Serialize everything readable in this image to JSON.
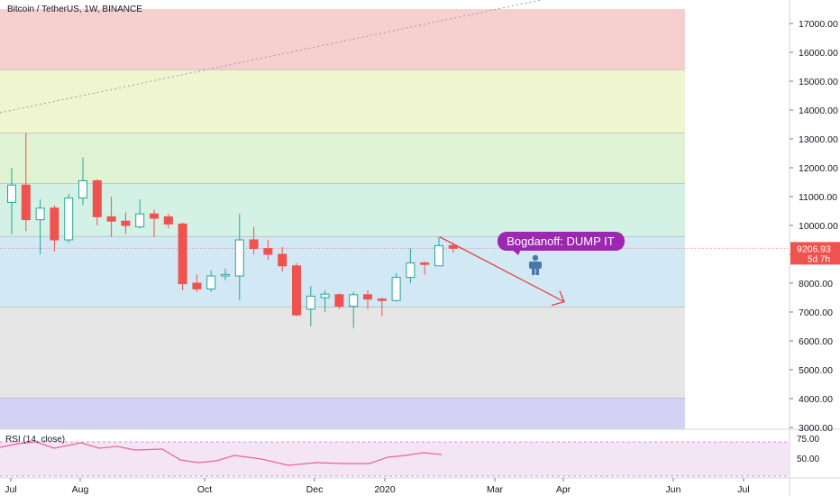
{
  "header": {
    "title": "Bitcoin / TetherUS, 1W, BINANCE"
  },
  "price_axis": {
    "ticks": [
      "17000.00",
      "16000.00",
      "15000.00",
      "14000.00",
      "13000.00",
      "12000.00",
      "11000.00",
      "10000.00",
      "9000.00",
      "8000.00",
      "7000.00",
      "6000.00",
      "5000.00",
      "4000.00",
      "3000.00"
    ],
    "current_price": "9206.93",
    "countdown": "5d 7h",
    "current_price_color": "#ef5350",
    "countdown_color": "#ef5350"
  },
  "time_axis": {
    "ticks": [
      "Jul",
      "Aug",
      "Oct",
      "Dec",
      "2020",
      "Mar",
      "Apr",
      "Jun",
      "Jul"
    ]
  },
  "annotation": {
    "text": "Bogdanoff: DUMP IT",
    "bubble_color": "#9c27b0",
    "icon": "person-icon",
    "arrow_color": "#e53935"
  },
  "rsi": {
    "label": "RSI (14, close)",
    "ticks": [
      "75.00",
      "50.00"
    ],
    "line_color": "#f06292",
    "band_color": "#f3e5f5"
  },
  "zones": [
    {
      "from": 17500,
      "to": 15400,
      "color": "#f6cfcf"
    },
    {
      "from": 15400,
      "to": 13200,
      "color": "#eef5cf"
    },
    {
      "from": 13200,
      "to": 11450,
      "color": "#dff3d2"
    },
    {
      "from": 11450,
      "to": 9620,
      "color": "#d4f1e6"
    },
    {
      "from": 9620,
      "to": 7170,
      "color": "#d2e8f4"
    },
    {
      "from": 7170,
      "to": 4020,
      "color": "#e6e6e6"
    },
    {
      "from": 4020,
      "to": 2900,
      "color": "#d4d2f4"
    }
  ],
  "chart_data": {
    "type": "candlestick",
    "title": "Bitcoin / TetherUS, 1W, BINANCE",
    "interval": "1W",
    "ylim": [
      2900,
      17500
    ],
    "up_color": "#26a69a",
    "down_color": "#ef5350",
    "candles": [
      {
        "o": 10800,
        "h": 12000,
        "l": 9700,
        "c": 11400
      },
      {
        "o": 11400,
        "h": 13200,
        "l": 9800,
        "c": 10200
      },
      {
        "o": 10200,
        "h": 10900,
        "l": 9000,
        "c": 10600
      },
      {
        "o": 10600,
        "h": 10700,
        "l": 9100,
        "c": 9500
      },
      {
        "o": 9500,
        "h": 11100,
        "l": 9400,
        "c": 10950
      },
      {
        "o": 10950,
        "h": 12350,
        "l": 10700,
        "c": 11550
      },
      {
        "o": 11550,
        "h": 11600,
        "l": 10000,
        "c": 10300
      },
      {
        "o": 10300,
        "h": 11000,
        "l": 9600,
        "c": 10150
      },
      {
        "o": 10150,
        "h": 10450,
        "l": 9700,
        "c": 10000
      },
      {
        "o": 9950,
        "h": 10900,
        "l": 9900,
        "c": 10400
      },
      {
        "o": 10400,
        "h": 10550,
        "l": 9600,
        "c": 10250
      },
      {
        "o": 10300,
        "h": 10400,
        "l": 9900,
        "c": 10050
      },
      {
        "o": 10050,
        "h": 10100,
        "l": 7750,
        "c": 7980
      },
      {
        "o": 8000,
        "h": 8300,
        "l": 7700,
        "c": 7800
      },
      {
        "o": 7800,
        "h": 8450,
        "l": 7700,
        "c": 8250
      },
      {
        "o": 8250,
        "h": 8500,
        "l": 8100,
        "c": 8300
      },
      {
        "o": 8250,
        "h": 10400,
        "l": 7400,
        "c": 9500
      },
      {
        "o": 9500,
        "h": 9950,
        "l": 9000,
        "c": 9200
      },
      {
        "o": 9200,
        "h": 9500,
        "l": 8800,
        "c": 9000
      },
      {
        "o": 9000,
        "h": 9250,
        "l": 8400,
        "c": 8600
      },
      {
        "o": 8600,
        "h": 8700,
        "l": 6850,
        "c": 6900
      },
      {
        "o": 7100,
        "h": 7900,
        "l": 6500,
        "c": 7550
      },
      {
        "o": 7500,
        "h": 7750,
        "l": 7000,
        "c": 7620
      },
      {
        "o": 7600,
        "h": 7650,
        "l": 7100,
        "c": 7200
      },
      {
        "o": 7200,
        "h": 7700,
        "l": 6450,
        "c": 7600
      },
      {
        "o": 7600,
        "h": 7750,
        "l": 7100,
        "c": 7450
      },
      {
        "o": 7450,
        "h": 7500,
        "l": 6850,
        "c": 7400
      },
      {
        "o": 7400,
        "h": 8350,
        "l": 7350,
        "c": 8200
      },
      {
        "o": 8200,
        "h": 9200,
        "l": 8000,
        "c": 8700
      },
      {
        "o": 8700,
        "h": 8750,
        "l": 8300,
        "c": 8650
      },
      {
        "o": 8600,
        "h": 9600,
        "l": 8600,
        "c": 9300
      },
      {
        "o": 9300,
        "h": 9400,
        "l": 9050,
        "c": 9207
      }
    ],
    "projection": {
      "from_value": 9600,
      "to_value": 7200
    }
  }
}
